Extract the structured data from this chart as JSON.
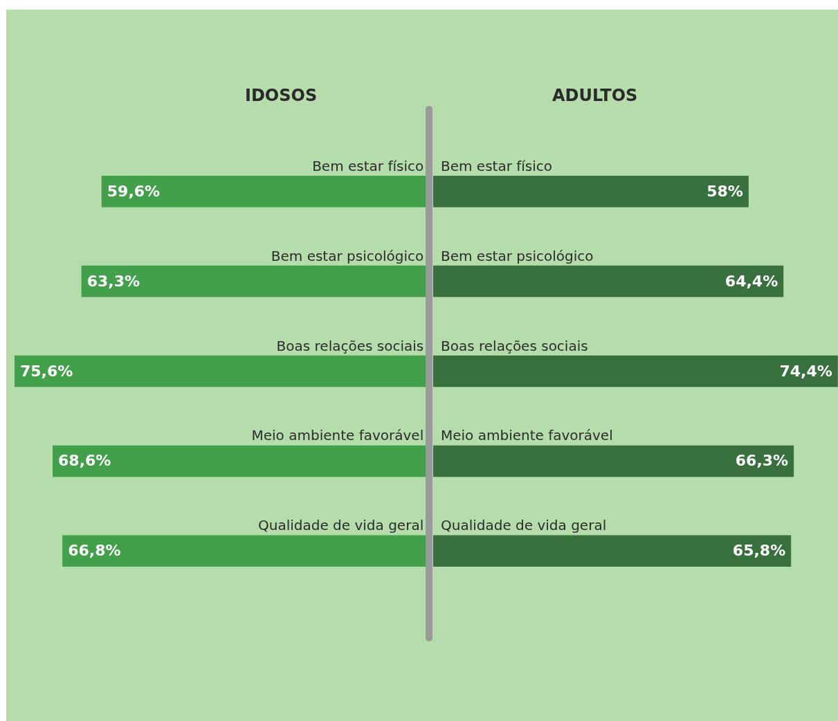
{
  "chart_data": [
    {
      "type": "bar",
      "orientation": "horizontal",
      "title": "IDOSOS",
      "categories": [
        "Bem estar físico",
        "Bem estar psicológico",
        "Boas relações sociais",
        "Meio ambiente favorável",
        "Qualidade de vida geral"
      ],
      "values": [
        59.6,
        63.3,
        75.6,
        68.6,
        66.8
      ],
      "value_labels": [
        "59,6%",
        "63,3%",
        "75,6%",
        "68,6%",
        "66,8%"
      ],
      "color": "#43a04a",
      "xlim": [
        75.6,
        0
      ]
    },
    {
      "type": "bar",
      "orientation": "horizontal",
      "title": "ADULTOS",
      "categories": [
        "Bem estar físico",
        "Bem estar psicológico",
        "Boas relações sociais",
        "Meio ambiente favorável",
        "Qualidade de vida geral"
      ],
      "values": [
        58,
        64.4,
        74.4,
        66.3,
        65.8
      ],
      "value_labels": [
        "58%",
        "64,4%",
        "74,4%",
        "66,3%",
        "65,8%"
      ],
      "color": "#38713e",
      "xlim": [
        0,
        74.4
      ]
    }
  ]
}
